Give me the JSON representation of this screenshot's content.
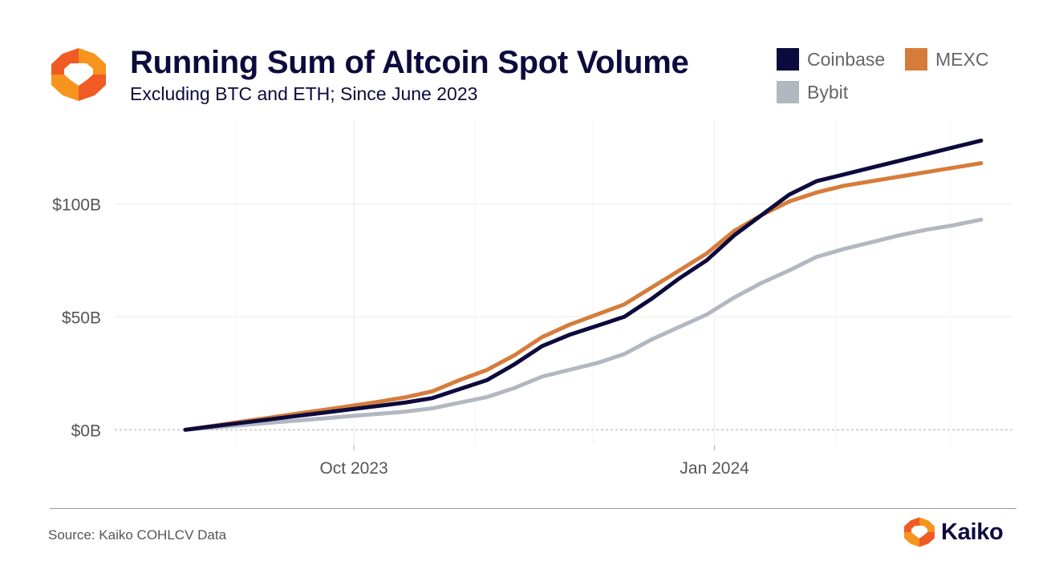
{
  "header": {
    "title": "Running Sum of Altcoin Spot Volume",
    "subtitle": "Excluding BTC and ETH; Since June 2023"
  },
  "logo": {
    "icon": "kaiko-logo-icon",
    "colors": [
      "#f7941d",
      "#f15a24"
    ]
  },
  "footer": {
    "source": "Source: Kaiko COHLCV Data",
    "brand": "Kaiko"
  },
  "chart_data": {
    "type": "line",
    "title": "Running Sum of Altcoin Spot Volume",
    "subtitle": "Excluding BTC and ETH; Since June 2023",
    "xlabel": "",
    "ylabel": "",
    "x_ticks": [
      "Oct 2023",
      "Jan 2024"
    ],
    "y_ticks": [
      "$0B",
      "$50B",
      "$100B"
    ],
    "y_tick_values": [
      0,
      50,
      100
    ],
    "ylim": [
      -7,
      137
    ],
    "xlim": [
      "2023-08-01",
      "2024-03-17"
    ],
    "grid": true,
    "legend_position": "top-right",
    "x": [
      "2023-08-19",
      "2023-08-26",
      "2023-09-02",
      "2023-09-09",
      "2023-09-16",
      "2023-09-23",
      "2023-09-30",
      "2023-10-07",
      "2023-10-14",
      "2023-10-21",
      "2023-10-28",
      "2023-11-04",
      "2023-11-11",
      "2023-11-18",
      "2023-11-25",
      "2023-12-02",
      "2023-12-09",
      "2023-12-16",
      "2023-12-23",
      "2023-12-30",
      "2024-01-06",
      "2024-01-13",
      "2024-01-20",
      "2024-01-27",
      "2024-02-03",
      "2024-02-10",
      "2024-02-17",
      "2024-02-24",
      "2024-03-02",
      "2024-03-09"
    ],
    "series": [
      {
        "name": "Coinbase",
        "color": "#0d0a3d",
        "values": [
          0,
          1.5,
          3,
          4.5,
          6,
          7.5,
          9,
          10.5,
          12,
          14,
          18,
          22,
          29,
          37,
          42,
          46,
          50,
          58,
          67,
          75,
          86,
          95,
          104,
          110,
          113,
          116,
          119,
          122,
          125,
          128
        ]
      },
      {
        "name": "MEXC",
        "color": "#d67c3a",
        "values": [
          0,
          1.7,
          3.5,
          5.2,
          7,
          8.7,
          10.5,
          12.3,
          14.3,
          17,
          22,
          26.5,
          33,
          41,
          46.5,
          51,
          55.5,
          63,
          70.5,
          78,
          88,
          95,
          101,
          105,
          108,
          110,
          112,
          114,
          116,
          118
        ]
      },
      {
        "name": "Bybit",
        "color": "#b2b8c2",
        "values": [
          0,
          1,
          2,
          3,
          4,
          5,
          6,
          7,
          8,
          9.5,
          12,
          14.5,
          18.5,
          23.5,
          26.5,
          29.5,
          33.5,
          40,
          45.5,
          51,
          58.5,
          65,
          70.5,
          76.5,
          80,
          83,
          86,
          88.5,
          90.5,
          93
        ]
      }
    ]
  }
}
